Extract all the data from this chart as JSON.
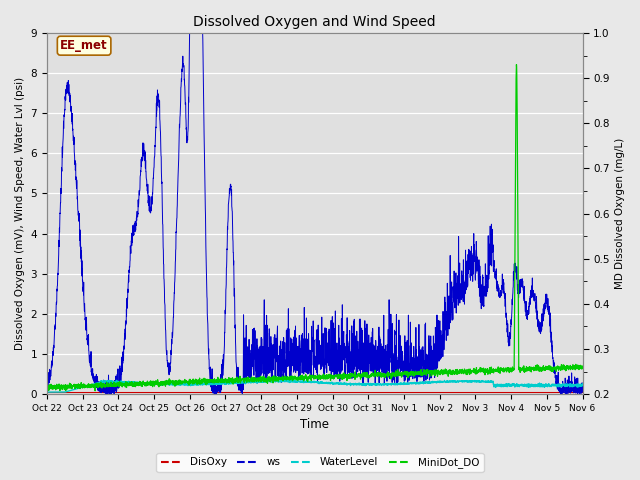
{
  "title": "Dissolved Oxygen and Wind Speed",
  "ylabel_left": "Dissolved Oxygen (mV), Wind Speed, Water Lvl (psi)",
  "ylabel_right": "MD Dissolved Oxygen (mg/L)",
  "xlabel": "Time",
  "annotation": "EE_met",
  "ylim_left": [
    0.0,
    9.0
  ],
  "ylim_right": [
    0.2,
    1.0
  ],
  "fig_bg_color": "#e8e8e8",
  "plot_bg_color": "#e0e0e0",
  "line_colors": {
    "DisOxy": "#cc0000",
    "ws": "#0000cc",
    "WaterLevel": "#00cccc",
    "MiniDot_DO": "#00cc00"
  },
  "xtick_labels": [
    "Oct 22",
    "Oct 23",
    "Oct 24",
    "Oct 25",
    "Oct 26",
    "Oct 27",
    "Oct 28",
    "Oct 29",
    "Oct 30",
    "Oct 31",
    "Nov 1",
    "Nov 2",
    "Nov 3",
    "Nov 4",
    "Nov 5",
    "Nov 6"
  ],
  "n_points": 3000
}
